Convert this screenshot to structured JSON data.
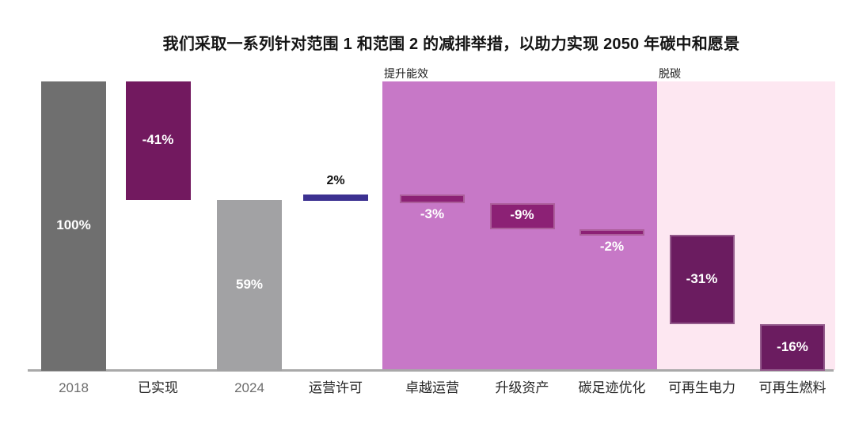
{
  "chart_data": {
    "type": "waterfall",
    "title": "我们采取一系列针对范围 1 和范围 2 的减排举措，以助力实现 2050 年碳中和愿景",
    "unit": "%",
    "ylim": [
      0,
      100
    ],
    "grid": false,
    "categories": [
      "2018",
      "已实现",
      "2024",
      "运营许可",
      "卓越运营",
      "升级资产",
      "碳足迹优化",
      "可再生电力",
      "可再生燃料"
    ],
    "bars": [
      {
        "category": "2018",
        "value": 100,
        "value_label": "100%",
        "kind": "total",
        "start_pct": 0,
        "end_pct": 100,
        "color": "total_dark",
        "label_pos": "middle",
        "in_region": false
      },
      {
        "category": "已实现",
        "value": -41,
        "value_label": "-41%",
        "kind": "decrease",
        "start_pct": 100,
        "end_pct": 59,
        "color": "achieved",
        "label_pos": "middle",
        "in_region": false
      },
      {
        "category": "2024",
        "value": 59,
        "value_label": "59%",
        "kind": "total",
        "start_pct": 59,
        "end_pct": 0,
        "color": "total_light",
        "label_pos": "middle",
        "in_region": false
      },
      {
        "category": "运营许可",
        "value": 2,
        "value_label": "2%",
        "kind": "increase",
        "start_pct": 59,
        "end_pct": 61,
        "color": "permit",
        "label_pos": "above",
        "in_region": false
      },
      {
        "category": "卓越运营",
        "value": -3,
        "value_label": "-3%",
        "kind": "decrease",
        "start_pct": 61,
        "end_pct": 58,
        "color": "efficiency_bar",
        "label_pos": "below",
        "in_region": true
      },
      {
        "category": "升级资产",
        "value": -9,
        "value_label": "-9%",
        "kind": "decrease",
        "start_pct": 58,
        "end_pct": 49,
        "color": "efficiency_bar",
        "label_pos": "middle",
        "in_region": true
      },
      {
        "category": "碳足迹优化",
        "value": -2,
        "value_label": "-2%",
        "kind": "decrease",
        "start_pct": 49,
        "end_pct": 47,
        "color": "efficiency_bar",
        "label_pos": "below",
        "in_region": true
      },
      {
        "category": "可再生电力",
        "value": -31,
        "value_label": "-31%",
        "kind": "decrease",
        "start_pct": 47,
        "end_pct": 16,
        "color": "decarb_bar",
        "label_pos": "middle",
        "in_region": true
      },
      {
        "category": "可再生燃料",
        "value": -16,
        "value_label": "-16%",
        "kind": "decrease",
        "start_pct": 16,
        "end_pct": 0,
        "color": "decarb_bar",
        "label_pos": "middle",
        "in_region": true
      }
    ],
    "groups": [
      {
        "label": "提升能效",
        "categories": [
          "卓越运营",
          "升级资产",
          "碳足迹优化"
        ],
        "color": "efficiency_region"
      },
      {
        "label": "脱碳",
        "categories": [
          "可再生电力",
          "可再生燃料"
        ],
        "color": "decarb_region"
      }
    ],
    "colors": {
      "total_dark": "#6f6f6f",
      "total_light": "#a2a2a4",
      "achieved": "#72195f",
      "permit": "#3c3191",
      "efficiency_bar": "#8c2175",
      "efficiency_region": "#c778c7",
      "decarb_bar": "#6b1c60",
      "decarb_region": "#fde7f1",
      "axis_line": "#a9a9a9",
      "axis_label_muted": "#6d6d6d",
      "axis_label": "#262626",
      "value_label_light": "#ffffff",
      "value_label_dark": "#111111"
    },
    "legend": "none"
  }
}
